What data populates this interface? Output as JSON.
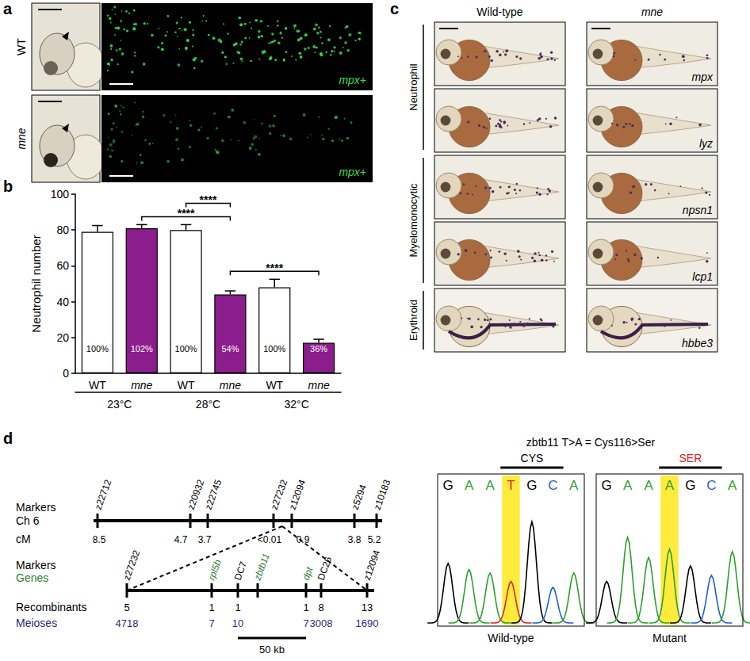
{
  "panel_labels": [
    "a",
    "b",
    "c",
    "d"
  ],
  "panel_a": {
    "rows": [
      "WT",
      "mne"
    ],
    "stain": "mpx+"
  },
  "chart_data": {
    "type": "bar",
    "y_label": "Neutrophil number",
    "categories": [
      "WT",
      "mne",
      "WT",
      "mne",
      "WT",
      "mne"
    ],
    "groups": [
      "23°C",
      "28°C",
      "32°C"
    ],
    "values": [
      79,
      81,
      80,
      44,
      48,
      17
    ],
    "errors": [
      3.5,
      2,
      3,
      2,
      4.5,
      2
    ],
    "colors": [
      "#ffffff",
      "#8c1d8c",
      "#ffffff",
      "#8c1d8c",
      "#ffffff",
      "#8c1d8c"
    ],
    "bar_annotations": [
      "100%",
      "102%",
      "100%",
      "54%",
      "100%",
      "36%"
    ],
    "significance": [
      {
        "from": 1,
        "to": 3,
        "label": "****"
      },
      {
        "from": 2,
        "to": 3,
        "label": "****"
      },
      {
        "from": 3,
        "to": 5,
        "label": "****"
      }
    ],
    "ylim": [
      0,
      100
    ],
    "yticks": [
      0,
      20,
      40,
      60,
      80,
      100
    ],
    "grid": false
  },
  "panel_c": {
    "columns": [
      "Wild-type",
      "mne"
    ],
    "row_groups": [
      {
        "label": "Neutrophil",
        "genes": [
          "mpx",
          "lyz"
        ]
      },
      {
        "label": "Myelomonocytic",
        "genes": [
          "npsn1",
          "lcp1"
        ]
      },
      {
        "label": "Erythroid",
        "genes": [
          "hbbe3"
        ]
      }
    ]
  },
  "panel_d": {
    "map": {
      "row_label": "Markers",
      "chromosome": "Ch 6",
      "unit": "cM",
      "markers": [
        {
          "name": "z22712",
          "cM": 8.5
        },
        {
          "name": "z20932",
          "cM": 4.7
        },
        {
          "name": "z22745",
          "cM": 3.7
        },
        {
          "name": "z27232",
          "cM": "<0.01"
        },
        {
          "name": "z12094",
          "cM": 0.9
        },
        {
          "name": "z5294",
          "cM": 3.8
        },
        {
          "name": "z10183",
          "cM": 5.2
        }
      ]
    },
    "fine_map": {
      "labels": [
        "Markers",
        "Genes"
      ],
      "rows": [
        "Recombinants",
        "Meioses"
      ],
      "loci": [
        {
          "name": "z27232",
          "kind": "marker",
          "recombinants": 5,
          "meioses": 4718
        },
        {
          "name": "rpl5b",
          "kind": "gene",
          "recombinants": 1,
          "meioses": 7
        },
        {
          "name": "DC7",
          "kind": "marker",
          "recombinants": 1,
          "meioses": 10
        },
        {
          "name": "zbtb11",
          "kind": "gene",
          "recombinants": null,
          "meioses": null
        },
        {
          "name": "dpt",
          "kind": "gene",
          "recombinants": 1,
          "meioses": 7
        },
        {
          "name": "DC26",
          "kind": "marker",
          "recombinants": 8,
          "meioses": 3008
        },
        {
          "name": "z12094",
          "kind": "marker",
          "recombinants": 13,
          "meioses": 1690
        }
      ],
      "scale_bar": "50 kb"
    },
    "chromatogram": {
      "title": "zbtb11 T>A = Cys116>Ser",
      "highlight_index": 3,
      "traces": [
        {
          "label": "Wild-type",
          "codon": "CYS",
          "color": "#000000",
          "bases": [
            "G",
            "A",
            "A",
            "T",
            "G",
            "C",
            "A"
          ]
        },
        {
          "label": "Mutant",
          "codon": "SER",
          "color": "#e02020",
          "bases": [
            "G",
            "A",
            "A",
            "A",
            "G",
            "C",
            "A"
          ]
        }
      ]
    }
  }
}
